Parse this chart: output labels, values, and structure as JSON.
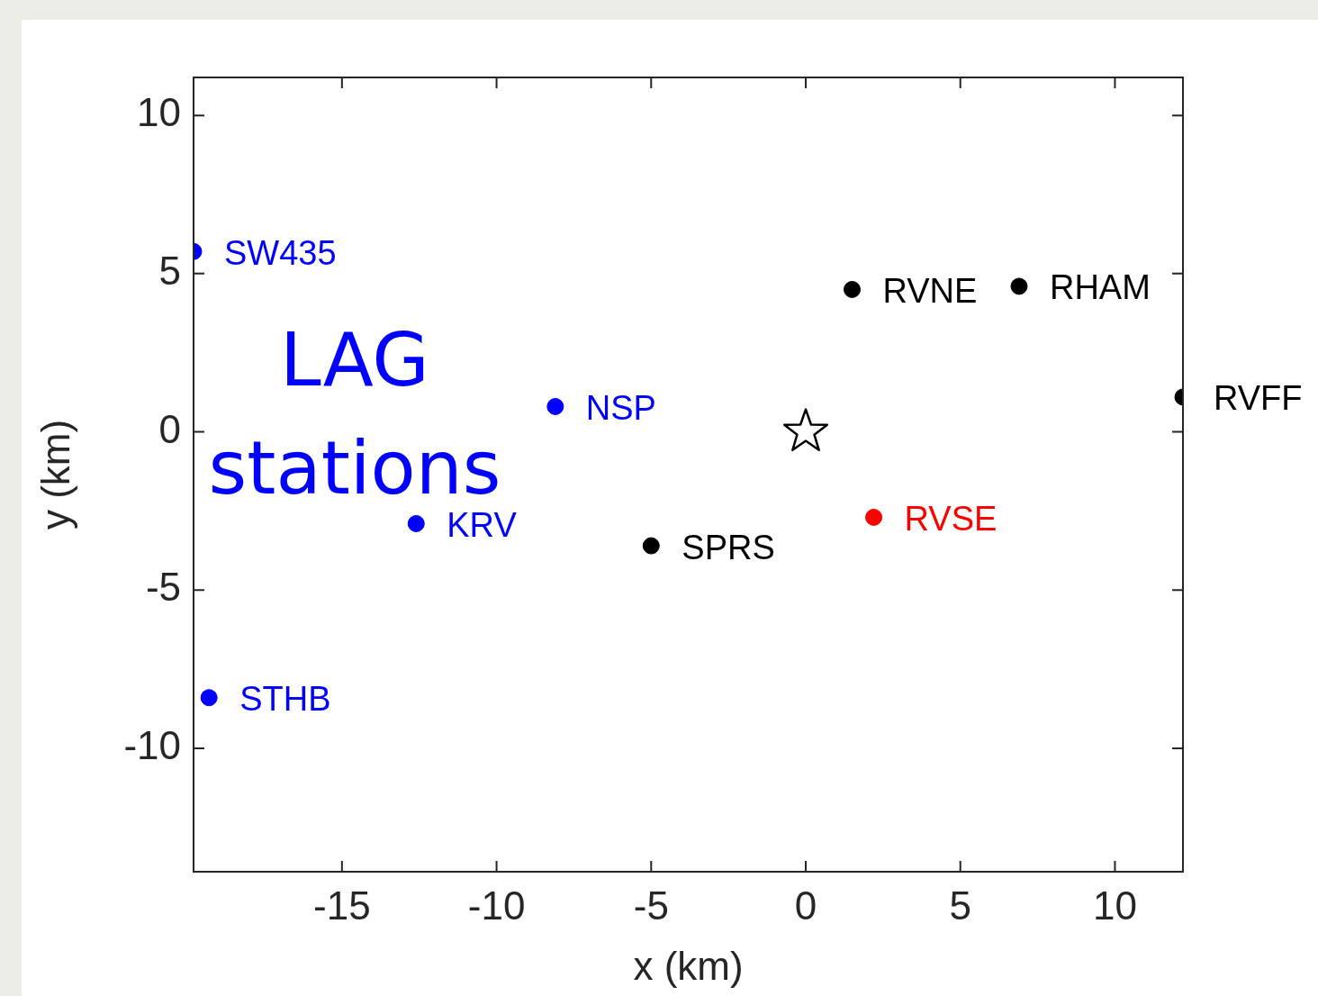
{
  "chart_data": {
    "type": "scatter",
    "xlabel": "x (km)",
    "ylabel": "y (km)",
    "annotations": [
      "LAG stations"
    ],
    "xlim": [
      -19.8,
      12.2
    ],
    "ylim": [
      -13.9,
      11.2
    ],
    "xticks": [
      -15,
      -10,
      -5,
      0,
      5,
      10
    ],
    "yticks": [
      -10,
      -5,
      0,
      5,
      10
    ],
    "grid": false,
    "legend": false,
    "series": [
      {
        "name": "SW435",
        "color": "#0000ff",
        "x": [
          -19.8
        ],
        "values": [
          5.7
        ],
        "marker": "circle"
      },
      {
        "name": "NSP",
        "color": "#0000ff",
        "x": [
          -8.1
        ],
        "values": [
          0.8
        ],
        "marker": "circle"
      },
      {
        "name": "KRV",
        "color": "#0000ff",
        "x": [
          -12.6
        ],
        "values": [
          -2.9
        ],
        "marker": "circle"
      },
      {
        "name": "STHB",
        "color": "#0000ff",
        "x": [
          -19.3
        ],
        "values": [
          -8.4
        ],
        "marker": "circle"
      },
      {
        "name": "SPRS",
        "color": "#000000",
        "x": [
          -5.0
        ],
        "values": [
          -3.6
        ],
        "marker": "circle"
      },
      {
        "name": "RVNE",
        "color": "#000000",
        "x": [
          1.5
        ],
        "values": [
          4.5
        ],
        "marker": "circle"
      },
      {
        "name": "RHAM",
        "color": "#000000",
        "x": [
          6.9
        ],
        "values": [
          4.6
        ],
        "marker": "circle"
      },
      {
        "name": "RVFF",
        "color": "#000000",
        "x": [
          12.2
        ],
        "values": [
          1.1
        ],
        "marker": "circle"
      },
      {
        "name": "RVSE",
        "color": "#ff0000",
        "x": [
          2.2
        ],
        "values": [
          -2.7
        ],
        "marker": "circle"
      },
      {
        "color": "#000000",
        "x": [
          0
        ],
        "values": [
          0
        ],
        "marker": "star"
      }
    ]
  }
}
